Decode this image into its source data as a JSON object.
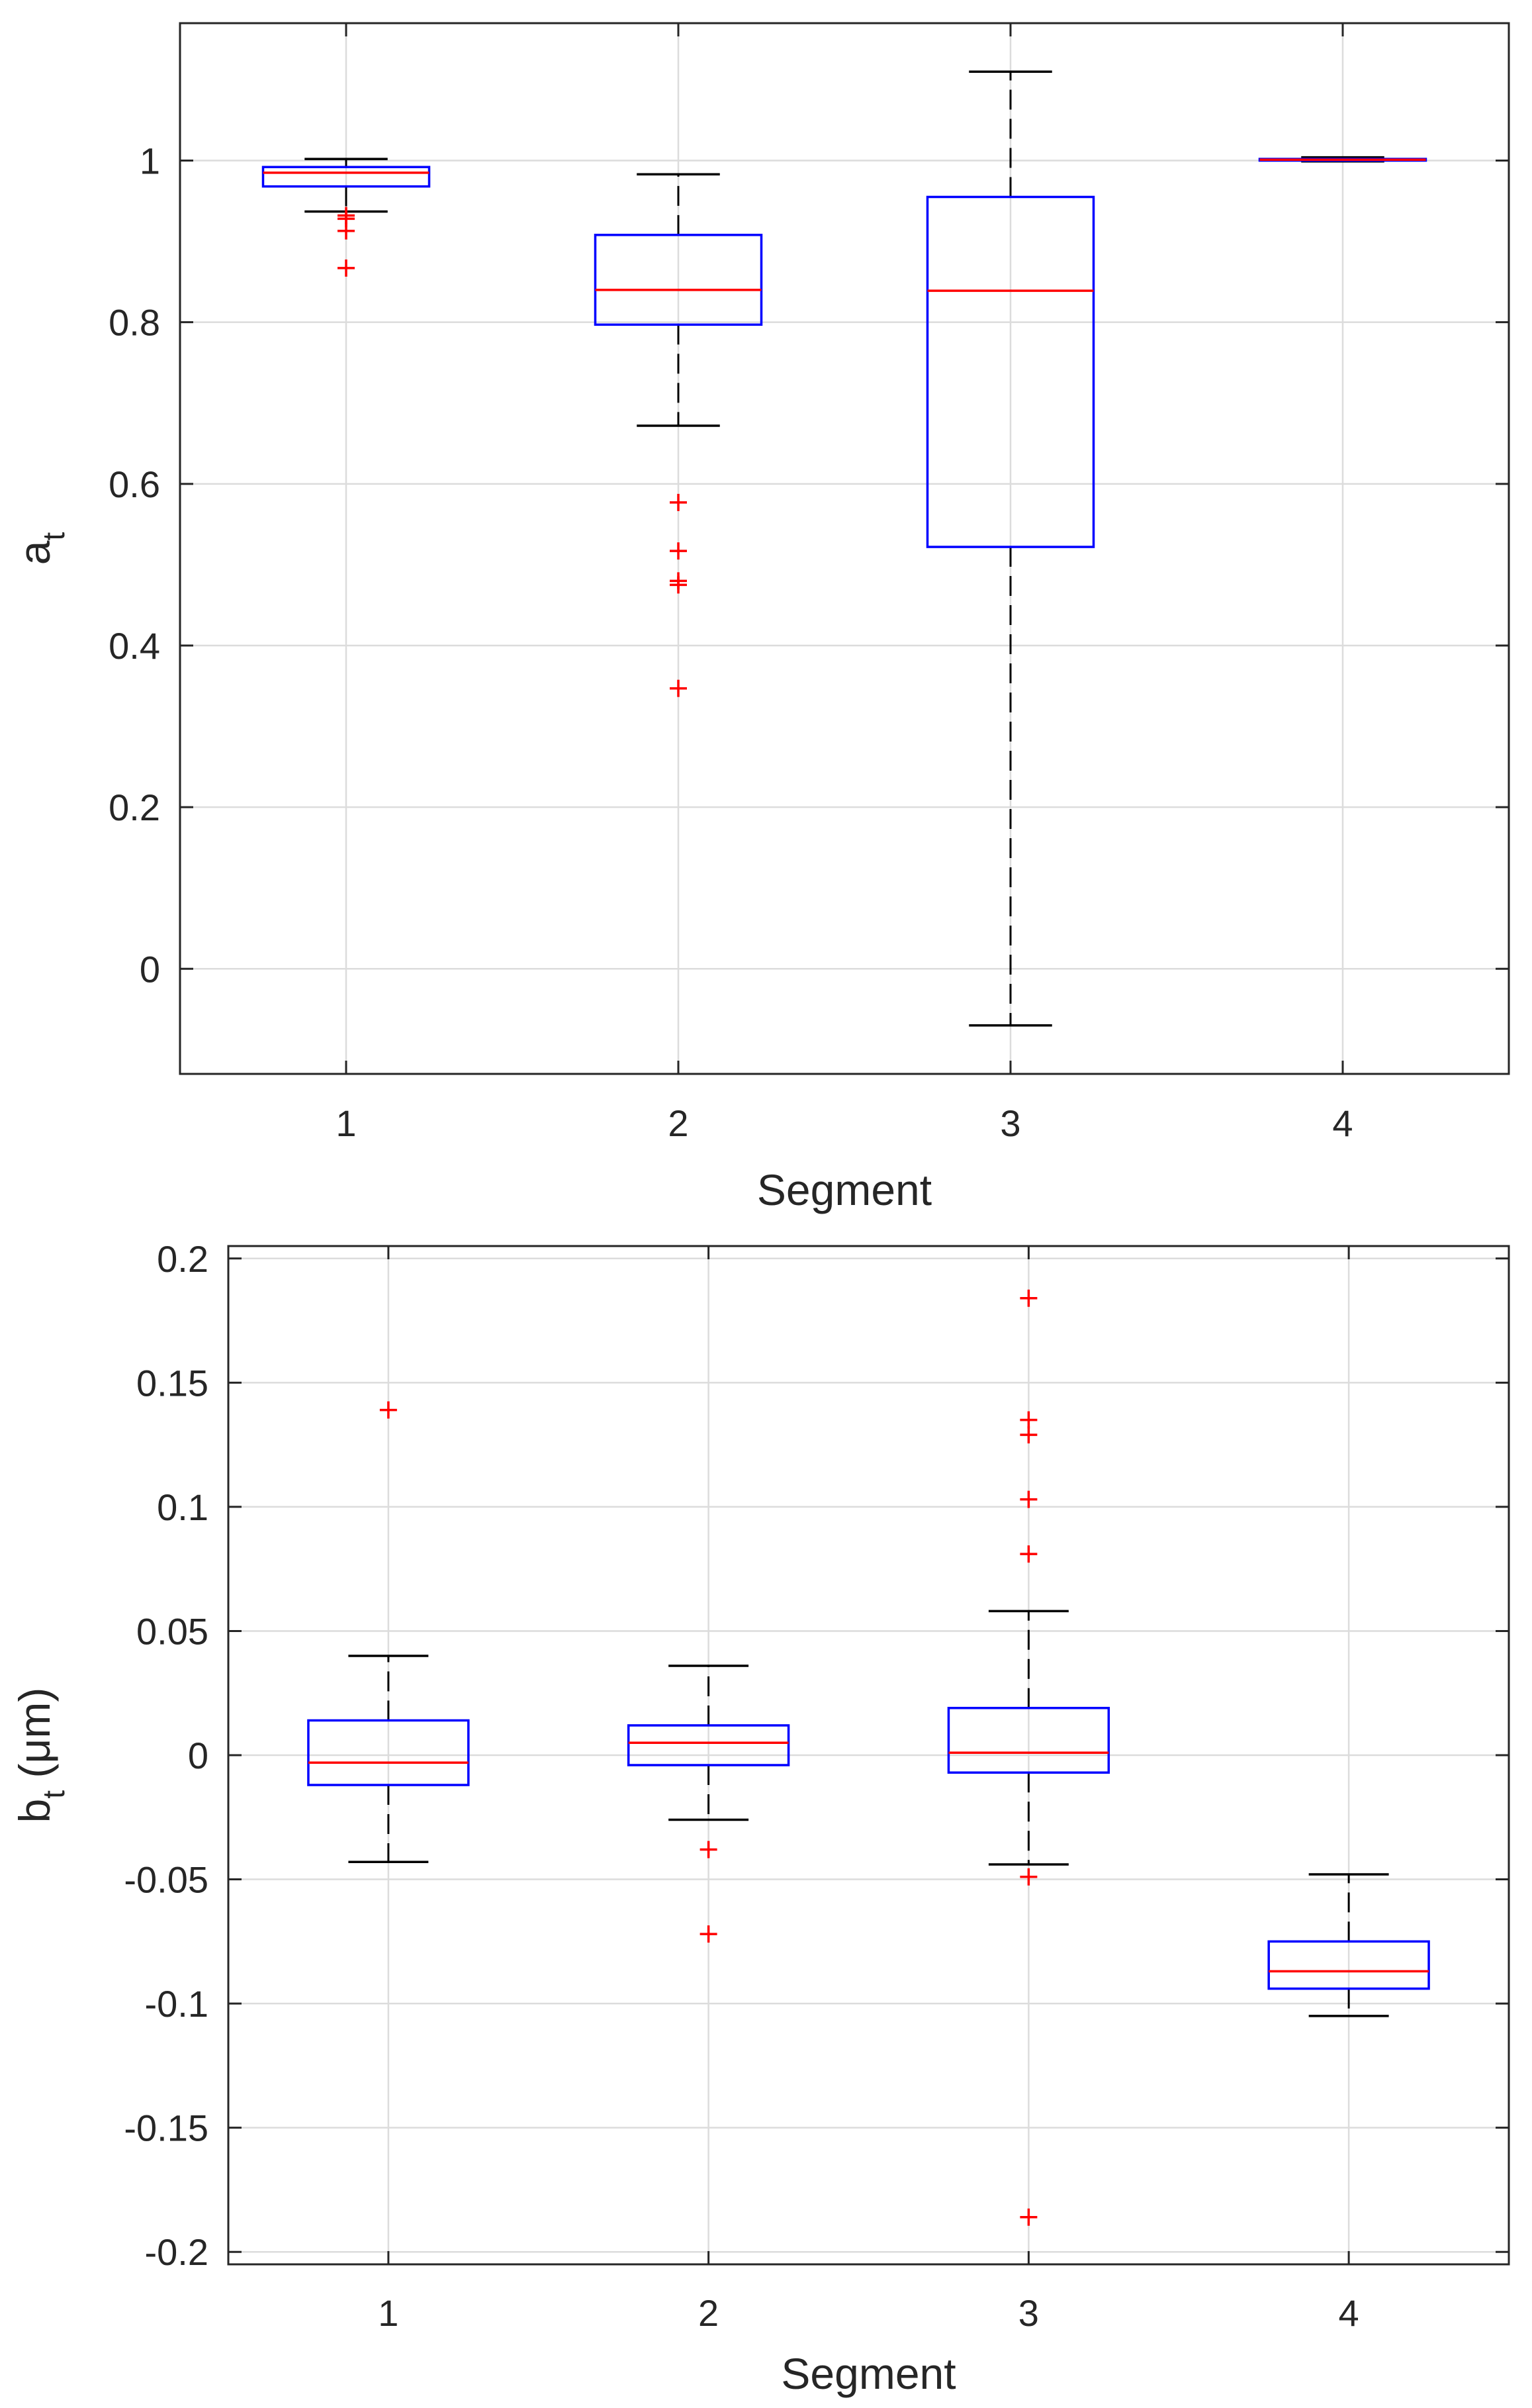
{
  "figure": {
    "description_colors": {
      "box": "#0000ff",
      "median": "#ff0000",
      "whisker": "#000000",
      "outlier": "#ff0000",
      "grid": "#dcdcdc",
      "axis": "#262626"
    }
  },
  "chart_data": [
    {
      "type": "box",
      "title": "",
      "xlabel": "Segment",
      "ylabel_main": "a",
      "ylabel_sub": "t",
      "ylabel_suffix": "",
      "categories": [
        "1",
        "2",
        "3",
        "4"
      ],
      "ylim": [
        -0.13,
        1.17
      ],
      "yticks": [
        0,
        0.2,
        0.4,
        0.6,
        0.8,
        1
      ],
      "ytick_labels": [
        "0",
        "0.2",
        "0.4",
        "0.6",
        "0.8",
        "1"
      ],
      "grid": true,
      "boxes": [
        {
          "category": "1",
          "q1": 0.968,
          "median": 0.985,
          "q3": 0.992,
          "whisker_low": 0.937,
          "whisker_high": 1.002,
          "outliers": [
            0.932,
            0.928,
            0.913,
            0.867
          ]
        },
        {
          "category": "2",
          "q1": 0.797,
          "median": 0.84,
          "q3": 0.908,
          "whisker_low": 0.672,
          "whisker_high": 0.983,
          "outliers": [
            0.577,
            0.517,
            0.48,
            0.475,
            0.347
          ]
        },
        {
          "category": "3",
          "q1": 0.522,
          "median": 0.839,
          "q3": 0.955,
          "whisker_low": -0.07,
          "whisker_high": 1.11,
          "outliers": []
        },
        {
          "category": "4",
          "q1": 1.0,
          "median": 1.001,
          "q3": 1.002,
          "whisker_low": 0.999,
          "whisker_high": 1.004,
          "outliers": []
        }
      ]
    },
    {
      "type": "box",
      "title": "",
      "xlabel": "Segment",
      "ylabel_main": "b",
      "ylabel_sub": "t",
      "ylabel_suffix": " (μm)",
      "categories": [
        "1",
        "2",
        "3",
        "4"
      ],
      "ylim": [
        -0.205,
        0.205
      ],
      "yticks": [
        -0.2,
        -0.15,
        -0.1,
        -0.05,
        0,
        0.05,
        0.1,
        0.15,
        0.2
      ],
      "ytick_labels": [
        "-0.2",
        "-0.15",
        "-0.1",
        "-0.05",
        "0",
        "0.05",
        "0.1",
        "0.15",
        "0.2"
      ],
      "grid": true,
      "boxes": [
        {
          "category": "1",
          "q1": -0.012,
          "median": -0.003,
          "q3": 0.014,
          "whisker_low": -0.043,
          "whisker_high": 0.04,
          "outliers": [
            0.139
          ]
        },
        {
          "category": "2",
          "q1": -0.004,
          "median": 0.005,
          "q3": 0.012,
          "whisker_low": -0.026,
          "whisker_high": 0.036,
          "outliers": [
            -0.038,
            -0.072
          ]
        },
        {
          "category": "3",
          "q1": -0.007,
          "median": 0.001,
          "q3": 0.019,
          "whisker_low": -0.044,
          "whisker_high": 0.058,
          "outliers": [
            0.184,
            0.135,
            0.129,
            0.103,
            0.081,
            -0.049,
            -0.186
          ]
        },
        {
          "category": "4",
          "q1": -0.094,
          "median": -0.087,
          "q3": -0.075,
          "whisker_low": -0.105,
          "whisker_high": -0.048,
          "outliers": []
        }
      ]
    }
  ]
}
